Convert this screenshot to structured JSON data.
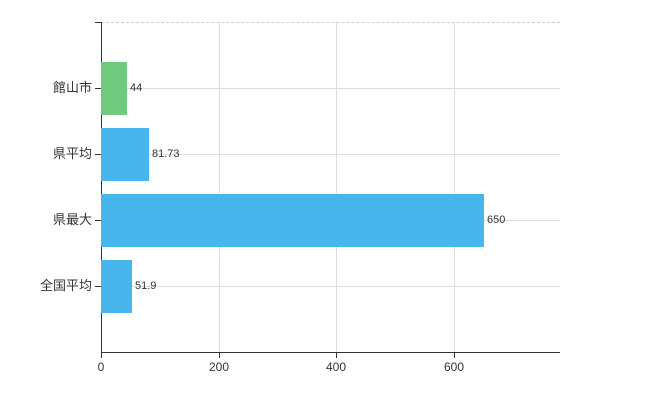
{
  "chart_data": {
    "type": "bar",
    "orientation": "horizontal",
    "title": "",
    "categories": [
      "館山市",
      "県平均",
      "県最大",
      "全国平均"
    ],
    "values": [
      44,
      81.73,
      650,
      51.9
    ],
    "value_labels": [
      "44",
      "81.73",
      "650",
      "51.9"
    ],
    "series": [
      {
        "name": "値",
        "values": [
          44,
          81.73,
          650,
          51.9
        ]
      }
    ],
    "bar_colors": [
      "#6fca7e",
      "#47b6ec",
      "#47b6ec",
      "#47b6ec"
    ],
    "xlim": [
      0,
      780
    ],
    "x_ticks": [
      0,
      200,
      400,
      600
    ],
    "x_tick_labels": [
      "0",
      "200",
      "400",
      "600"
    ],
    "ylabel": "",
    "xlabel": "",
    "grid": true,
    "legend": false
  },
  "colors": {
    "background": "#ffffff",
    "bar_green": "#6fca7e",
    "bar_blue": "#47b6ec",
    "axis_line": "#333333",
    "gridline": "#dddddd",
    "top_border_dashed": "#cccccc",
    "label_text": "#333333"
  }
}
